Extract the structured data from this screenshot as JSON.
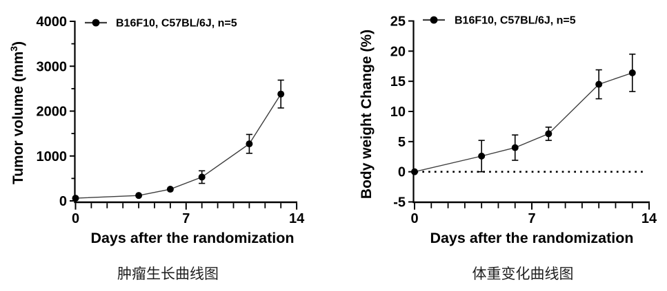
{
  "figure": {
    "background": "#ffffff",
    "text_color": "#000000",
    "series_line_color": "#3d3d3d",
    "marker_color": "#000000"
  },
  "chart_data": [
    {
      "type": "line",
      "caption": "肿瘤生长曲线图",
      "legend": "B16F10, C57BL/6J, n=5",
      "legend_position": "top-left",
      "xlabel": "Days after the randomization",
      "ylabel": "Tumor volume (mm³)",
      "xlim": [
        0,
        14
      ],
      "ylim": [
        0,
        4000
      ],
      "xticks_major": [
        0,
        7,
        14
      ],
      "xticks_minor_step": 1,
      "yticks_major": [
        0,
        1000,
        2000,
        3000,
        4000
      ],
      "yticks_minor": [
        500,
        1500,
        2500,
        3500
      ],
      "grid": false,
      "marker": "filled-circle",
      "zero_line": "none",
      "series": [
        {
          "name": "B16F10, C57BL/6J, n=5",
          "x": [
            0,
            4,
            6,
            8,
            11,
            13
          ],
          "y": [
            60,
            120,
            260,
            530,
            1270,
            2380
          ],
          "yerr": [
            0,
            0,
            0,
            140,
            210,
            310
          ]
        }
      ]
    },
    {
      "type": "line",
      "caption": "体重变化曲线图",
      "legend": "B16F10, C57BL/6J, n=5",
      "legend_position": "top-left",
      "xlabel": "Days after the randomization",
      "ylabel": "Body weight Change (%)",
      "xlim": [
        0,
        14
      ],
      "ylim": [
        -5,
        25
      ],
      "xticks_major": [
        0,
        7,
        14
      ],
      "xticks_minor_step": 1,
      "yticks_major": [
        -5,
        0,
        5,
        10,
        15,
        20,
        25
      ],
      "yticks_minor": [],
      "grid": false,
      "marker": "filled-circle",
      "zero_line": "dotted",
      "series": [
        {
          "name": "B16F10, C57BL/6J, n=5",
          "x": [
            0,
            4,
            6,
            8,
            11,
            13
          ],
          "y": [
            0,
            2.6,
            4.0,
            6.3,
            14.5,
            16.4
          ],
          "yerr": [
            0,
            2.6,
            2.1,
            1.1,
            2.4,
            3.1
          ]
        }
      ]
    }
  ]
}
